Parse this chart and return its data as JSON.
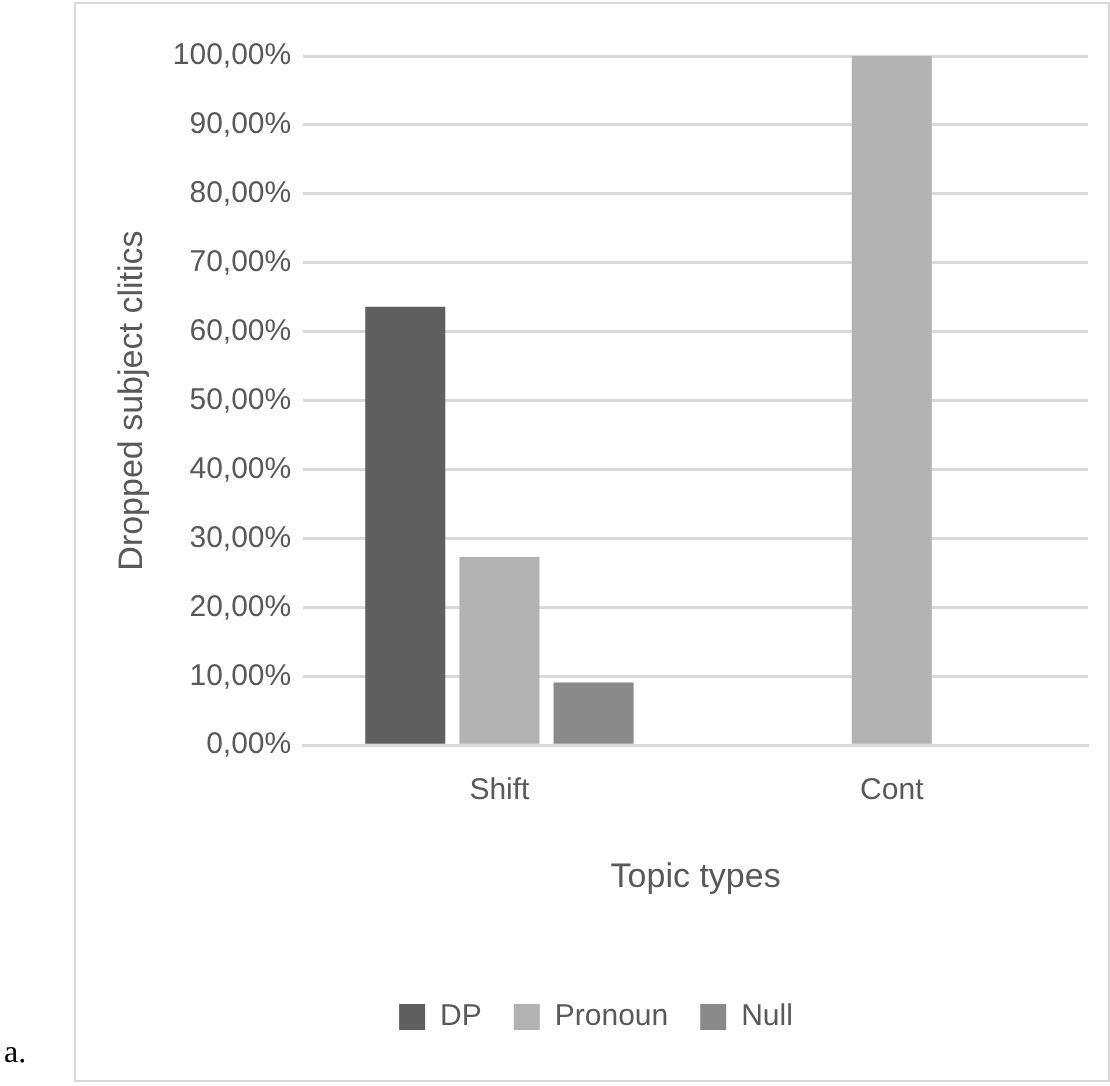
{
  "chart_data": {
    "type": "bar",
    "xlabel": "Topic types",
    "ylabel": "Dropped subject clitics",
    "categories": [
      "Shift",
      "Cont"
    ],
    "series": [
      {
        "name": "DP",
        "color": "#5f5f5f",
        "values": [
          63.6,
          0
        ]
      },
      {
        "name": "Pronoun",
        "color": "#b2b2b2",
        "values": [
          27.3,
          100
        ]
      },
      {
        "name": "Null",
        "color": "#8a8a8a",
        "values": [
          9.1,
          0
        ]
      }
    ],
    "ylim": [
      0,
      100
    ],
    "yticks": [
      {
        "value": 0,
        "label": "0,00%"
      },
      {
        "value": 10,
        "label": "10,00%"
      },
      {
        "value": 20,
        "label": "20,00%"
      },
      {
        "value": 30,
        "label": "30,00%"
      },
      {
        "value": 40,
        "label": "40,00%"
      },
      {
        "value": 50,
        "label": "50,00%"
      },
      {
        "value": 60,
        "label": "60,00%"
      },
      {
        "value": 70,
        "label": "70,00%"
      },
      {
        "value": 80,
        "label": "80,00%"
      },
      {
        "value": 90,
        "label": "90,00%"
      },
      {
        "value": 100,
        "label": "100,00%"
      }
    ],
    "grid": "y",
    "legend": "bottom",
    "annotations": [
      "a."
    ]
  }
}
